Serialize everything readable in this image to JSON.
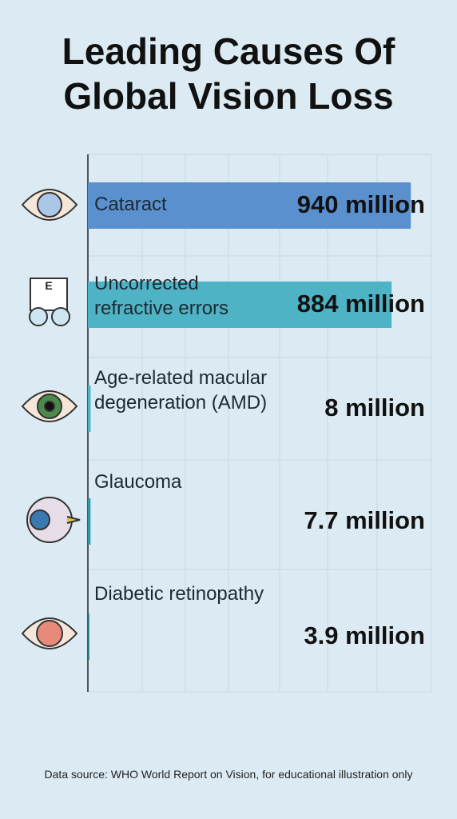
{
  "chart_data": {
    "type": "bar",
    "orientation": "horizontal",
    "title": "Leading Causes Of Global Vision Loss",
    "categories": [
      "Cataract",
      "Uncorrected refractive errors",
      "Age-related macular degeneration (AMD)",
      "Glaucoma",
      "Diabetic retinopathy"
    ],
    "values": [
      940,
      884,
      8,
      7.7,
      3.9
    ],
    "value_labels": [
      "940 million",
      "884 million",
      "8 million",
      "7.7 million",
      "3.9 million"
    ],
    "colors": [
      "#5b90cf",
      "#4db3c5",
      "#4db3c5",
      "#2e97ab",
      "#22707c"
    ],
    "xlim": [
      0,
      1000
    ],
    "source": "Data source: WHO World Report on Vision, for educational illustration only"
  }
}
